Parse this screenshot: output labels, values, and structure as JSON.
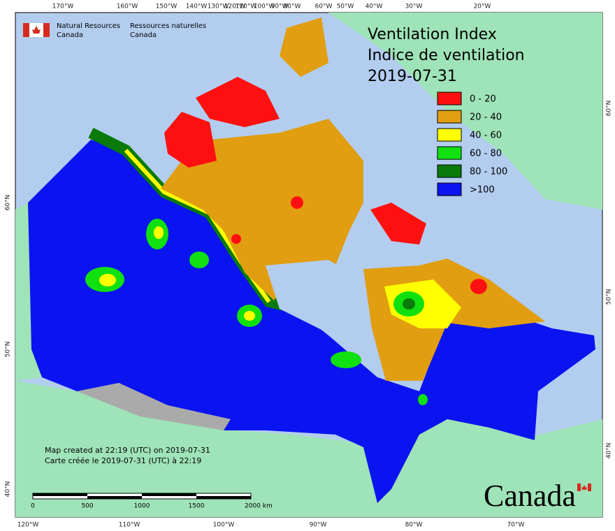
{
  "header": {
    "agency_en": [
      "Natural Resources",
      "Canada"
    ],
    "agency_fr": [
      "Ressources naturelles",
      "Canada"
    ]
  },
  "title": [
    "Ventilation Index",
    "Indice de ventilation",
    "2019-07-31"
  ],
  "legend": [
    {
      "label": "0 - 20",
      "color": "#ff1010"
    },
    {
      "label": "20 - 40",
      "color": "#e09e10"
    },
    {
      "label": "40 - 60",
      "color": "#ffff00"
    },
    {
      "label": "60 - 80",
      "color": "#10e010"
    },
    {
      "label": "80 - 100",
      "color": "#0a7a0a"
    },
    {
      "label": ">100",
      "color": "#0a14f0"
    }
  ],
  "top_longitudes": [
    "170°W",
    "160°W",
    "150°W",
    "140°W",
    "130°W",
    "120°W",
    "110°W",
    "100°W",
    "90°W",
    "80°W",
    "60°W",
    "50°W",
    "40°W",
    "30°W",
    "20°W"
  ],
  "bottom_longitudes": [
    "120°W",
    "110°W",
    "100°W",
    "90°W",
    "80°W",
    "70°W"
  ],
  "left_latitudes": [
    "60°N",
    "50°N",
    "40°N"
  ],
  "right_latitudes": [
    "60°N",
    "50°N",
    "40°N"
  ],
  "footnote": [
    "Map created at 22:19 (UTC) on 2019-07-31",
    "Carte créée le 2019-07-31 (UTC) à 22:19"
  ],
  "scale_bar": [
    "0",
    "500",
    "1000",
    "1500",
    "2000 km"
  ],
  "wordmark": "Canada"
}
